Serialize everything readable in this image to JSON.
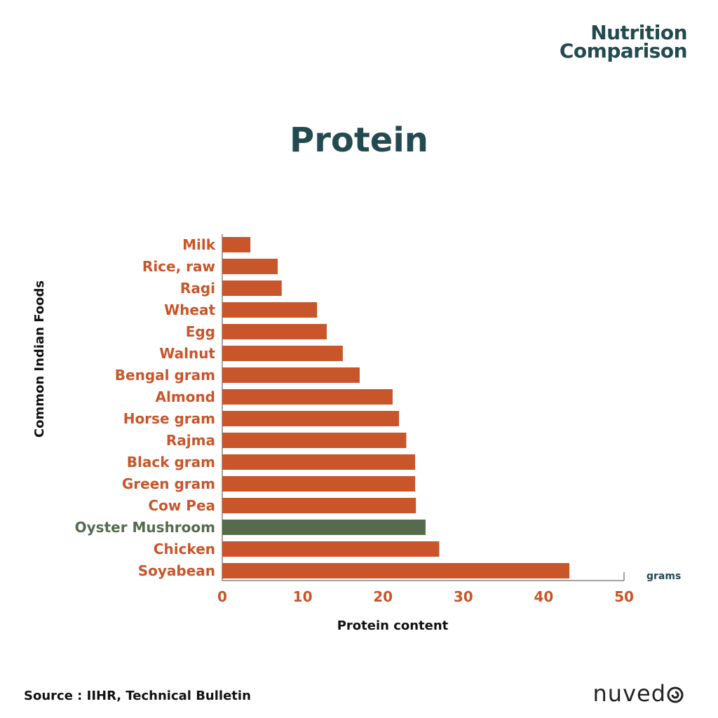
{
  "brand": {
    "line1": "Nutrition",
    "line2": "Comparison"
  },
  "footer": {
    "source": "Source : IIHR, Technical Bulletin",
    "logo_text": "nuved"
  },
  "colors": {
    "bar": "#c9552a",
    "highlight": "#566b4e",
    "title": "#234a4f",
    "axis": "#444444"
  },
  "chart_data": {
    "type": "bar",
    "orientation": "horizontal",
    "title": "Protein",
    "xlabel": "Protein content",
    "ylabel": "Common Indian Foods",
    "unit_label": "grams",
    "xlim": [
      0,
      50
    ],
    "xticks": [
      0,
      10,
      20,
      30,
      40,
      50
    ],
    "grid": false,
    "categories": [
      "Milk",
      "Rice, raw",
      "Ragi",
      "Wheat",
      "Egg",
      "Walnut",
      "Bengal gram",
      "Almond",
      "Horse gram",
      "Rajma",
      "Black gram",
      "Green gram",
      "Cow Pea",
      "Oyster Mushroom",
      "Chicken",
      "Soyabean"
    ],
    "values": [
      3.5,
      6.9,
      7.4,
      11.8,
      13.0,
      15.0,
      17.1,
      21.2,
      22.0,
      22.9,
      24.0,
      24.0,
      24.1,
      25.3,
      27.0,
      43.2
    ],
    "highlight": "Oyster Mushroom"
  }
}
